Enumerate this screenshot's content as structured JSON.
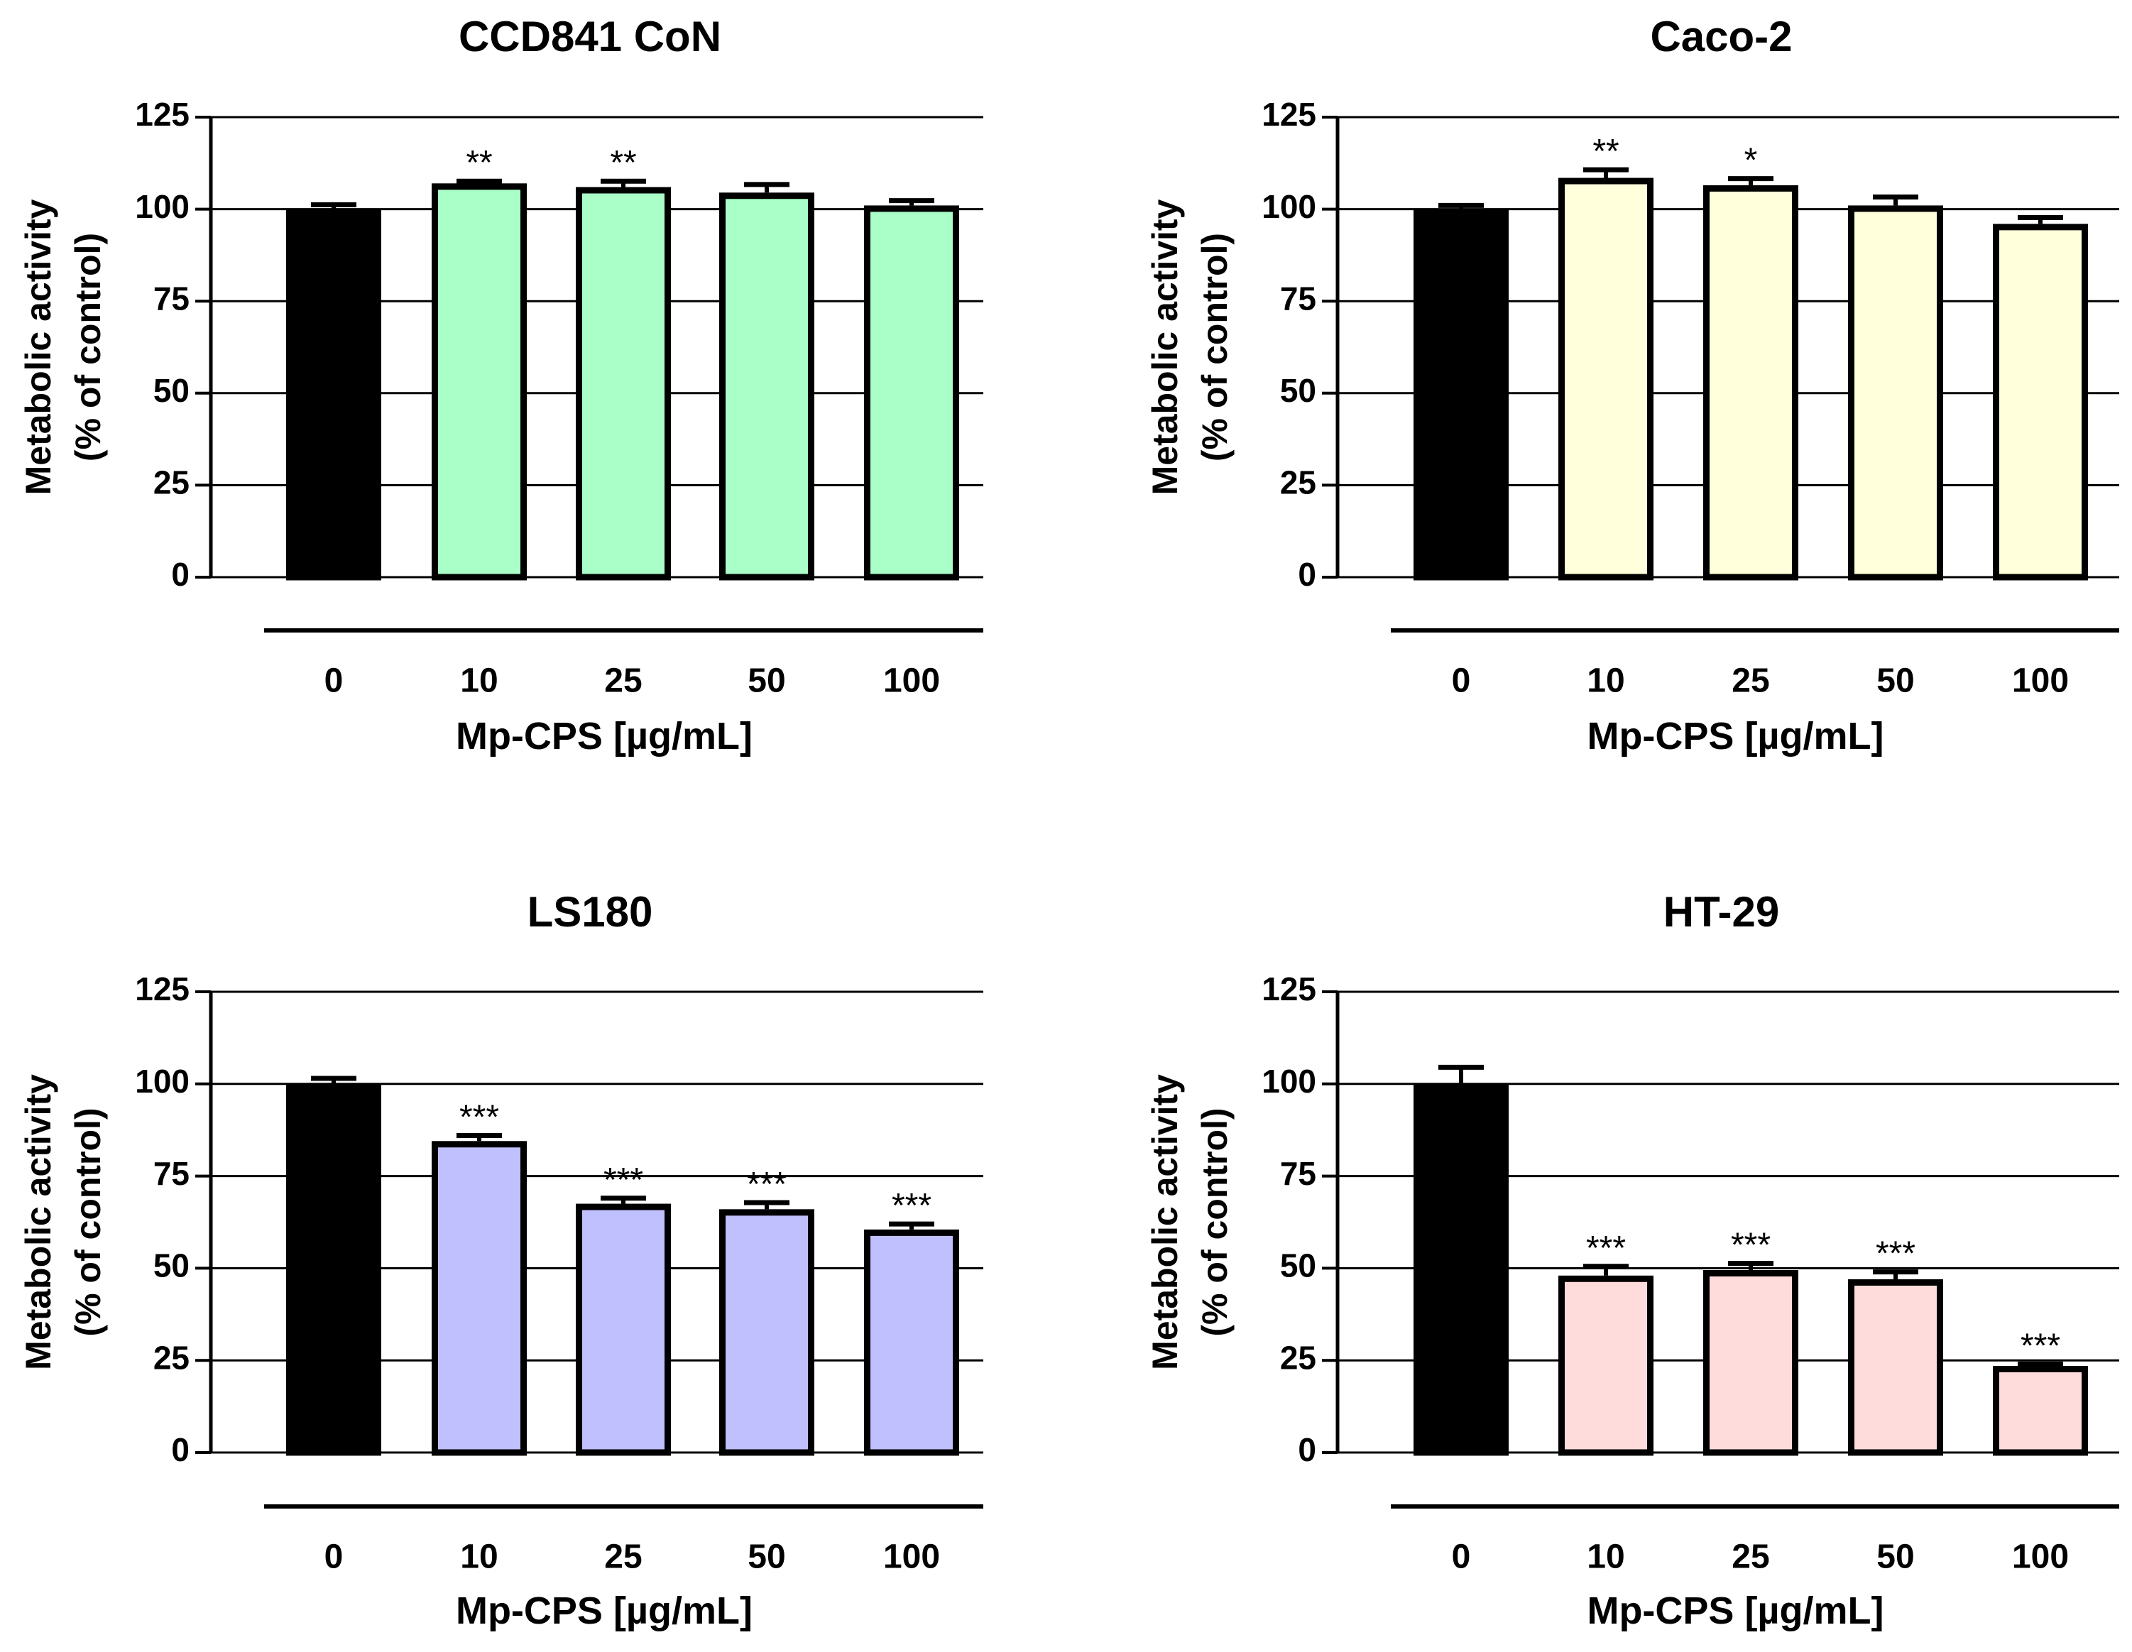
{
  "figure_description_free": true,
  "colors": {
    "control": "#000000",
    "outline": "#000000",
    "grid": "#000000"
  },
  "chart_data": [
    {
      "type": "bar",
      "title": "CCD841 CoN",
      "ylabel_line1": "Metabolic activity",
      "ylabel_line2": "(% of control)",
      "xlabel": "Mp-CPS [µg/mL]",
      "ylim": [
        0,
        125
      ],
      "yticks": [
        0,
        25,
        50,
        75,
        100,
        125
      ],
      "grid": true,
      "categories": [
        "0",
        "10",
        "25",
        "50",
        "100"
      ],
      "values": [
        100,
        107,
        106,
        104.5,
        101
      ],
      "errors": [
        1.2,
        0.6,
        1.6,
        2.2,
        1.3
      ],
      "significance": [
        "",
        "**",
        "**",
        "",
        ""
      ],
      "bar_colors": [
        "#000000",
        "#aaffc8",
        "#aaffc8",
        "#aaffc8",
        "#aaffc8"
      ]
    },
    {
      "type": "bar",
      "title": "Caco-2",
      "ylabel_line1": "Metabolic activity",
      "ylabel_line2": "(% of control)",
      "xlabel": "Mp-CPS [µg/mL]",
      "ylim": [
        0,
        125
      ],
      "yticks": [
        0,
        25,
        50,
        75,
        100,
        125
      ],
      "grid": true,
      "categories": [
        "0",
        "10",
        "25",
        "50",
        "100"
      ],
      "values": [
        100,
        108.5,
        106.5,
        101,
        96
      ],
      "errors": [
        1.0,
        2.2,
        1.8,
        2.3,
        1.7
      ],
      "significance": [
        "",
        "**",
        "*",
        "",
        ""
      ],
      "bar_colors": [
        "#000000",
        "#ffffdc",
        "#ffffdc",
        "#ffffdc",
        "#ffffdc"
      ]
    },
    {
      "type": "bar",
      "title": "LS180",
      "ylabel_line1": "Metabolic activity",
      "ylabel_line2": "(% of control)",
      "xlabel": "Mp-CPS [µg/mL]",
      "ylim": [
        0,
        125
      ],
      "yticks": [
        0,
        25,
        50,
        75,
        100,
        125
      ],
      "grid": true,
      "categories": [
        "0",
        "10",
        "25",
        "50",
        "100"
      ],
      "values": [
        100,
        84.5,
        67.5,
        66,
        60.5
      ],
      "errors": [
        1.5,
        1.5,
        1.5,
        1.8,
        1.5
      ],
      "significance": [
        "",
        "***",
        "***",
        "***",
        "***"
      ],
      "bar_colors": [
        "#000000",
        "#c0c0ff",
        "#c0c0ff",
        "#c0c0ff",
        "#c0c0ff"
      ]
    },
    {
      "type": "bar",
      "title": "HT-29",
      "ylabel_line1": "Metabolic activity",
      "ylabel_line2": "(% of control)",
      "xlabel": "Mp-CPS [µg/mL]",
      "ylim": [
        0,
        125
      ],
      "yticks": [
        0,
        25,
        50,
        75,
        100,
        125
      ],
      "grid": true,
      "categories": [
        "0",
        "10",
        "25",
        "50",
        "100"
      ],
      "values": [
        100,
        48,
        49.5,
        47,
        23.5
      ],
      "errors": [
        4.5,
        2.5,
        1.8,
        2.0,
        0.5
      ],
      "significance": [
        "",
        "***",
        "***",
        "***",
        "***"
      ],
      "bar_colors": [
        "#000000",
        "#ffdcdc",
        "#ffdcdc",
        "#ffdcdc",
        "#ffdcdc"
      ]
    }
  ]
}
